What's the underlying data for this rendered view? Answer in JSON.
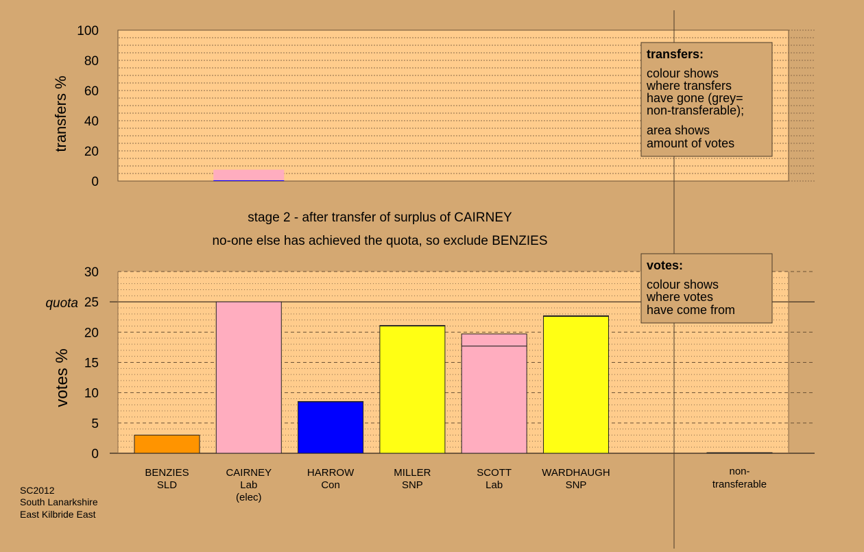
{
  "colors": {
    "page_bg": "#d4a872",
    "plot_bg": "#ffcc8c",
    "legend_bg": "#d4a872",
    "SLD": "#ff9400",
    "Lab": "#ffadbf",
    "Con": "#0000ff",
    "SNP": "#ffff14",
    "nontransferable": "#9a9a9a"
  },
  "stage_line": "stage 2 - after transfer of surplus of CAIRNEY",
  "exclude_line": "no-one else has achieved the quota, so exclude BENZIES",
  "transfers_legend": {
    "title": "transfers:",
    "lines1": [
      "colour shows",
      "where transfers",
      "have gone (grey=",
      "non-transferable);"
    ],
    "lines2": [
      "area shows",
      "amount of votes"
    ]
  },
  "votes_legend": {
    "title": "votes:",
    "lines": [
      "colour shows",
      "where votes",
      "have come from"
    ]
  },
  "footer": [
    "SC2012",
    "South Lanarkshire",
    "East Kilbride East"
  ],
  "chart_data": [
    {
      "type": "bar",
      "name": "transfers",
      "ylabel": "transfers %",
      "ylim": [
        0,
        100
      ],
      "yticks": [
        0,
        20,
        40,
        60,
        80,
        100
      ],
      "grid": "dotted",
      "bars": [
        {
          "index": 1,
          "segments": [
            {
              "party": "Con",
              "value": 0.5
            },
            {
              "party": "Lab",
              "value": 7.0
            }
          ]
        }
      ]
    },
    {
      "type": "bar",
      "name": "votes",
      "ylabel": "votes %",
      "ylim": [
        0,
        30
      ],
      "yticks": [
        0,
        5,
        10,
        15,
        20,
        25,
        30
      ],
      "quota": {
        "label": "quota",
        "value": 25
      },
      "grid": "dashed",
      "categories": [
        {
          "name": "BENZIES",
          "party": "SLD",
          "note": ""
        },
        {
          "name": "CAIRNEY",
          "party": "Lab",
          "note": "(elec)"
        },
        {
          "name": "HARROW",
          "party": "Con",
          "note": ""
        },
        {
          "name": "MILLER",
          "party": "SNP",
          "note": ""
        },
        {
          "name": "SCOTT",
          "party": "Lab",
          "note": ""
        },
        {
          "name": "WARDHAUGH",
          "party": "SNP",
          "note": ""
        }
      ],
      "nontransferable_label": [
        "non-",
        "transferable"
      ],
      "bars": [
        {
          "name": "BENZIES",
          "segments": [
            {
              "party": "SLD",
              "value": 3.0
            }
          ]
        },
        {
          "name": "CAIRNEY",
          "segments": [
            {
              "party": "Lab",
              "value": 25.0
            }
          ]
        },
        {
          "name": "HARROW",
          "segments": [
            {
              "party": "Con",
              "value": 8.5
            },
            {
              "party": "Con",
              "value": 0.05
            }
          ]
        },
        {
          "name": "MILLER",
          "segments": [
            {
              "party": "SNP",
              "value": 21.0
            },
            {
              "party": "Lab",
              "value": 0.1
            }
          ]
        },
        {
          "name": "SCOTT",
          "segments": [
            {
              "party": "Lab",
              "value": 17.7
            },
            {
              "party": "Lab",
              "value": 2.0
            }
          ]
        },
        {
          "name": "WARDHAUGH",
          "segments": [
            {
              "party": "SNP",
              "value": 22.6
            },
            {
              "party": "Lab",
              "value": 0.1
            }
          ]
        },
        {
          "name": "non-transferable",
          "segments": [
            {
              "party": "nontransferable",
              "value": 0.1
            }
          ]
        }
      ]
    }
  ]
}
